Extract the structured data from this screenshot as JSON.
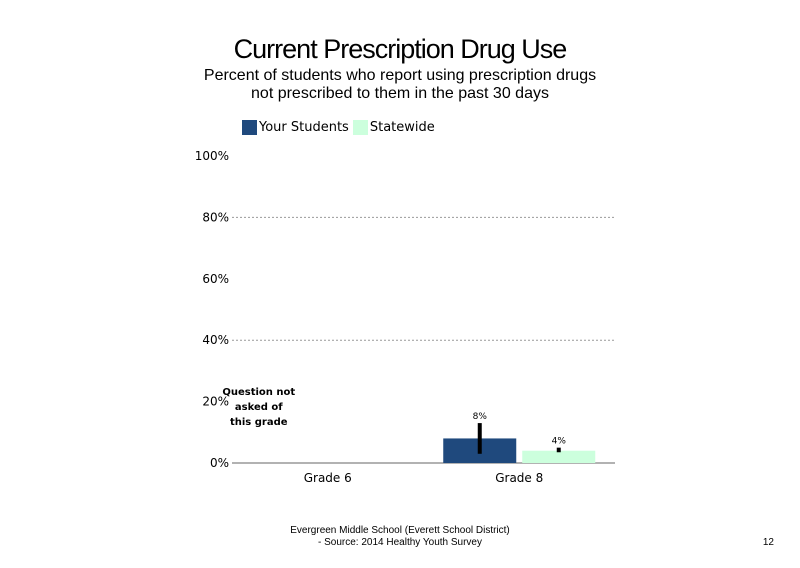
{
  "chart_data": {
    "type": "bar",
    "title": "Current Prescription Drug Use",
    "subtitle_lines": [
      "Percent of students  who report using prescription drugs",
      "not prescribed to them in the past 30 days"
    ],
    "categories": [
      "Grade 6",
      "Grade 8"
    ],
    "series": [
      {
        "name": "Your Students",
        "color": "#1f497d",
        "values": [
          null,
          8
        ],
        "error_low": [
          null,
          3
        ],
        "error_high": [
          null,
          13
        ]
      },
      {
        "name": "Statewide",
        "color": "#ccffdd",
        "values": [
          null,
          4
        ],
        "error_low": [
          null,
          3.5
        ],
        "error_high": [
          null,
          5
        ]
      }
    ],
    "data_labels": [
      [
        null,
        "8%"
      ],
      [
        null,
        "4%"
      ]
    ],
    "ylim": [
      0,
      100
    ],
    "yticks": [
      "0%",
      "20%",
      "40%",
      "60%",
      "80%",
      "100%"
    ],
    "grid": true,
    "legend_position": "top",
    "annotations": [
      "Question not",
      "asked of",
      "this grade"
    ]
  },
  "footer": {
    "line1": "Evergreen Middle School (Everett School District)",
    "line2": "- Source: 2014 Healthy  Youth Survey"
  },
  "page_number": "12"
}
